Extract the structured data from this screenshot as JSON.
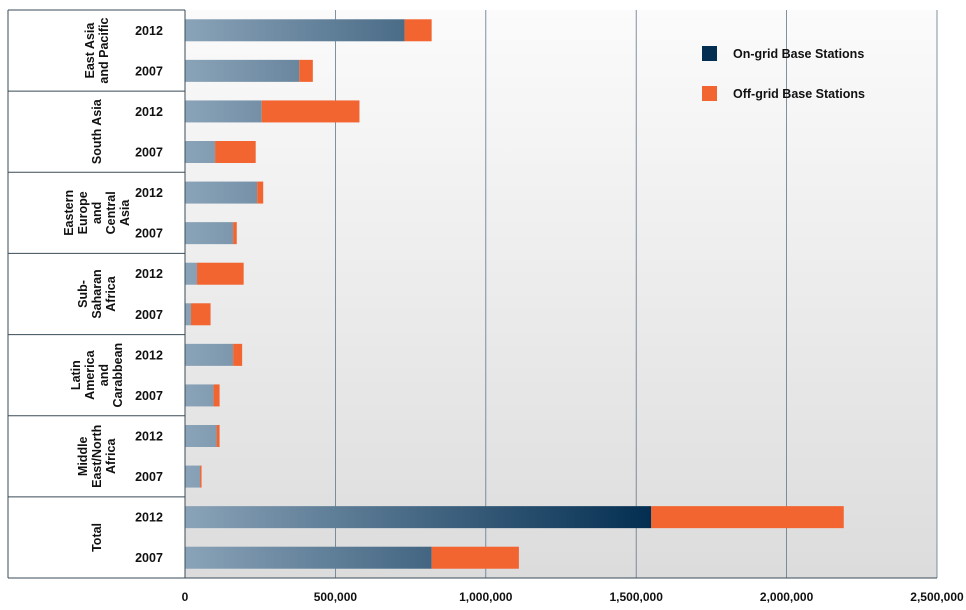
{
  "chart_data": {
    "type": "bar",
    "orientation": "horizontal",
    "stacked": true,
    "title": "",
    "xlabel": "",
    "ylabel": "",
    "xlim": [
      0,
      2500000
    ],
    "x_ticks": [
      "0",
      "500,000",
      "1,000,000",
      "1,500,000",
      "2,000,000",
      "2,500,000"
    ],
    "x_tick_values": [
      0,
      500000,
      1000000,
      1500000,
      2000000,
      2500000
    ],
    "grid": "vertical",
    "legend_position": "top-right",
    "groups": [
      {
        "label": "East Asia and Pacific",
        "label_lines": [
          "East Asia",
          "and Pacific"
        ]
      },
      {
        "label": "South Asia",
        "label_lines": [
          "South Asia"
        ]
      },
      {
        "label": "Eastern Europe and Central Asia",
        "label_lines": [
          "Eastern",
          "Europe",
          "and",
          "Central",
          "Asia"
        ]
      },
      {
        "label": "Sub-Saharan Africa",
        "label_lines": [
          "Sub-",
          "Saharan",
          "Africa"
        ]
      },
      {
        "label": "Latin America and Carabbean",
        "label_lines": [
          "Latin",
          "America",
          "and",
          "Carabbean"
        ]
      },
      {
        "label": "Middle East/North Africa",
        "label_lines": [
          "Middle",
          "East/North",
          "Africa"
        ]
      },
      {
        "label": "Total",
        "label_lines": [
          "Total"
        ]
      }
    ],
    "bars": [
      {
        "group": 0,
        "year": "2012",
        "on_grid": 730000,
        "off_grid": 90000
      },
      {
        "group": 0,
        "year": "2007",
        "on_grid": 380000,
        "off_grid": 45000
      },
      {
        "group": 1,
        "year": "2012",
        "on_grid": 255000,
        "off_grid": 325000
      },
      {
        "group": 1,
        "year": "2007",
        "on_grid": 100000,
        "off_grid": 135000
      },
      {
        "group": 2,
        "year": "2012",
        "on_grid": 240000,
        "off_grid": 20000
      },
      {
        "group": 2,
        "year": "2007",
        "on_grid": 160000,
        "off_grid": 12000
      },
      {
        "group": 3,
        "year": "2012",
        "on_grid": 40000,
        "off_grid": 155000
      },
      {
        "group": 3,
        "year": "2007",
        "on_grid": 20000,
        "off_grid": 65000
      },
      {
        "group": 4,
        "year": "2012",
        "on_grid": 160000,
        "off_grid": 30000
      },
      {
        "group": 4,
        "year": "2007",
        "on_grid": 95000,
        "off_grid": 20000
      },
      {
        "group": 5,
        "year": "2012",
        "on_grid": 105000,
        "off_grid": 10000
      },
      {
        "group": 5,
        "year": "2007",
        "on_grid": 50000,
        "off_grid": 5000
      },
      {
        "group": 6,
        "year": "2012",
        "on_grid": 1550000,
        "off_grid": 640000
      },
      {
        "group": 6,
        "year": "2007",
        "on_grid": 820000,
        "off_grid": 290000
      }
    ],
    "series": [
      {
        "name": "On-grid Base Stations",
        "key": "on_grid"
      },
      {
        "name": "Off-grid Base Stations",
        "key": "off_grid"
      }
    ],
    "colors": {
      "on_grid_light": "#8aa3b8",
      "on_grid_dark": "#032e51",
      "off_grid": "#f26430",
      "plot_bg_top": "#fbfbfb",
      "plot_bg_bottom": "#dcdcdc",
      "grid": "#5f7889",
      "axis": "#3a4b57"
    }
  }
}
